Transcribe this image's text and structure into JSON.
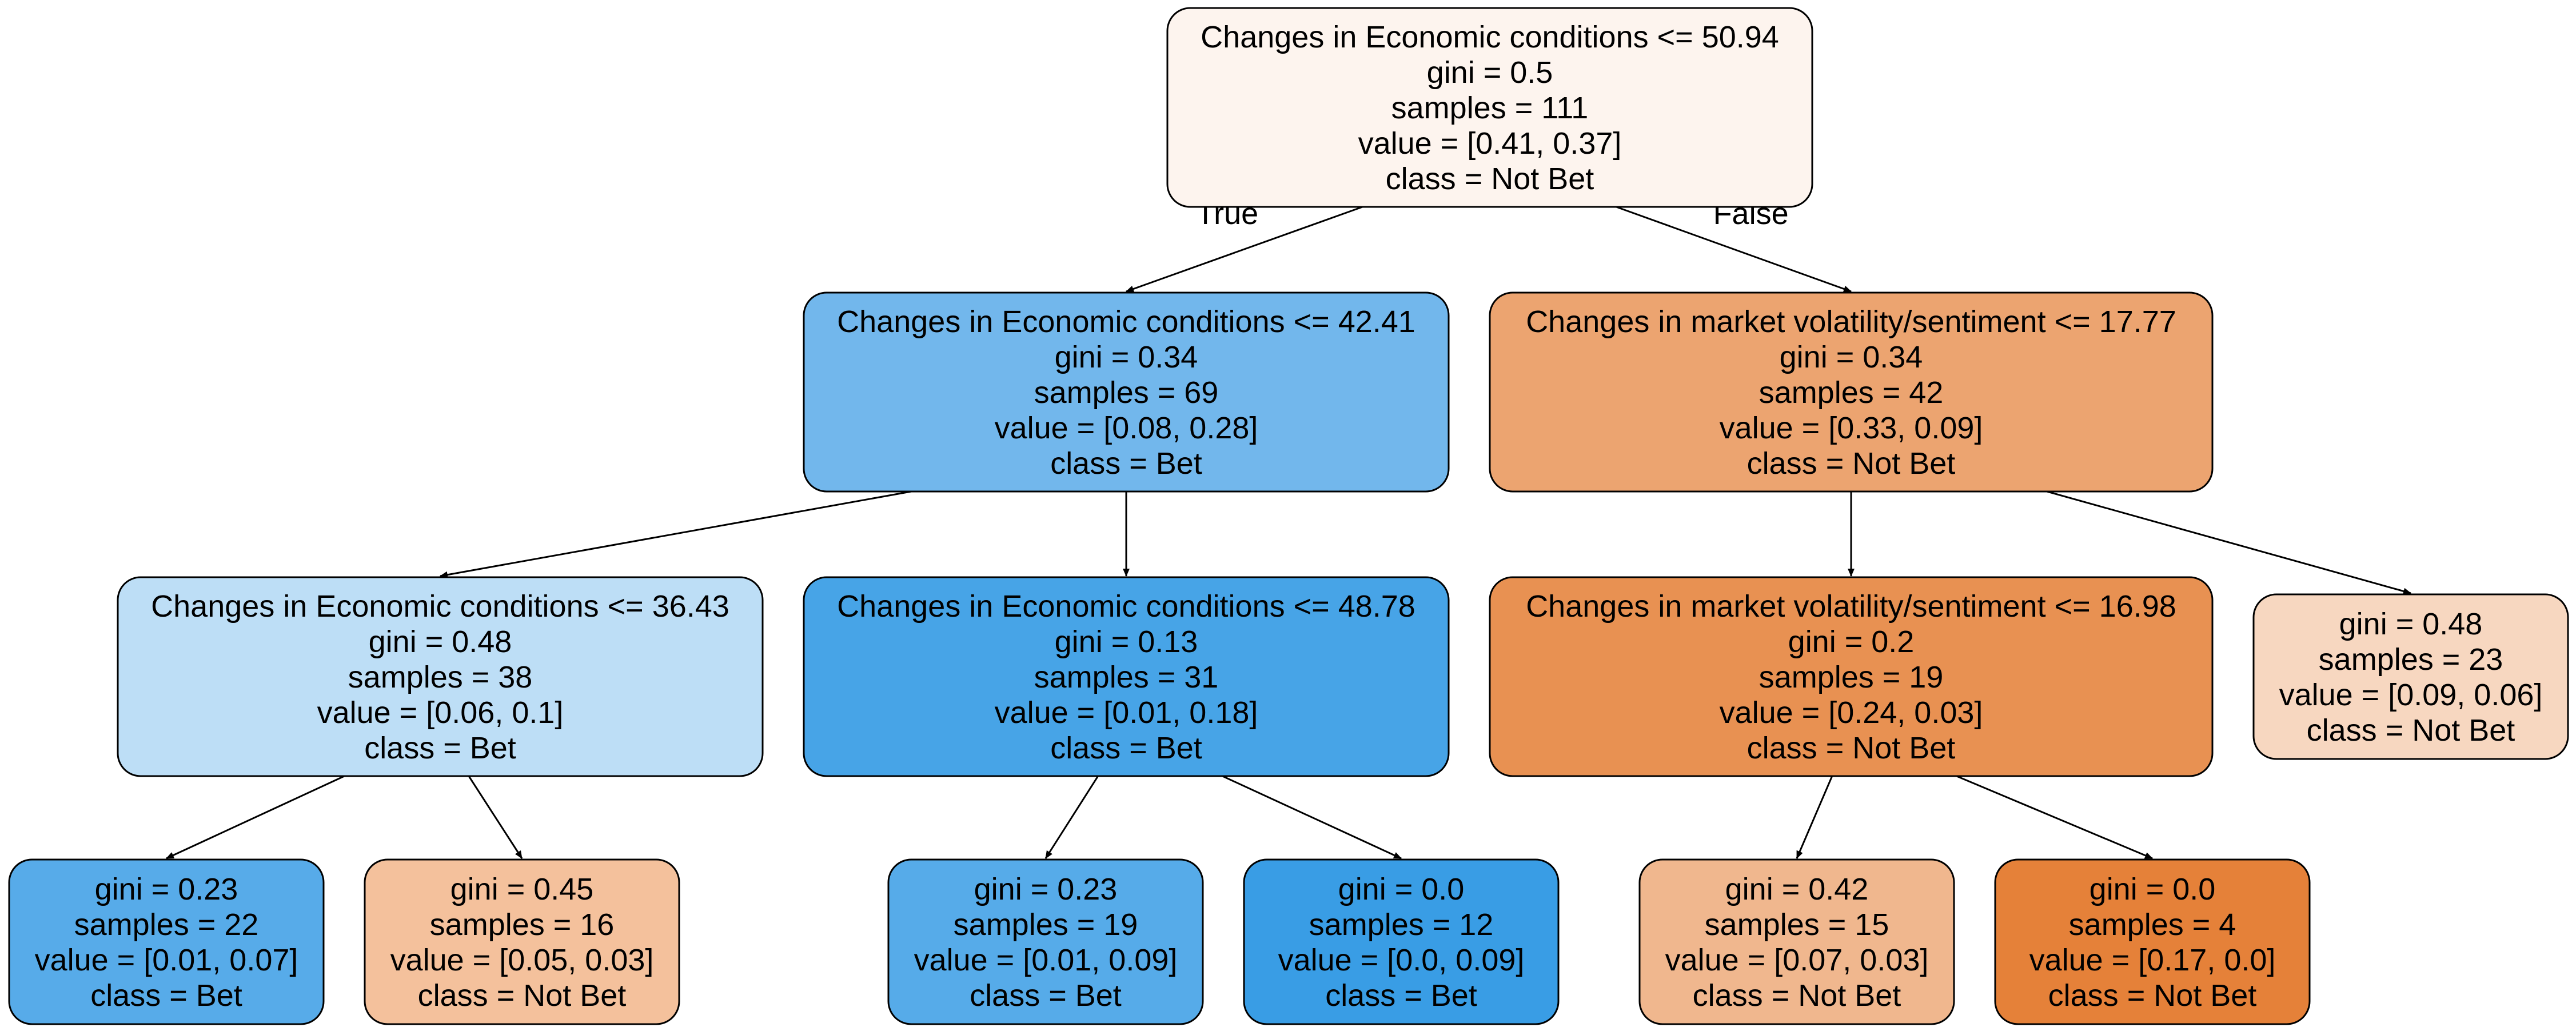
{
  "tree": {
    "nodes": [
      {
        "id": "n0",
        "lines": [
          "Changes in Economic conditions <= 50.94",
          "gini = 0.5",
          "samples = 111",
          "value = [0.41, 0.37]",
          "class = Not Bet"
        ],
        "fill": "#fdf4ee"
      },
      {
        "id": "n1",
        "lines": [
          "Changes in Economic conditions <= 42.41",
          "gini = 0.34",
          "samples = 69",
          "value = [0.08, 0.28]",
          "class = Bet"
        ],
        "fill": "#72b7ec"
      },
      {
        "id": "n2",
        "lines": [
          "Changes in market volatility/sentiment <= 17.77",
          "gini = 0.34",
          "samples = 42",
          "value = [0.33, 0.09]",
          "class = Not Bet"
        ],
        "fill": "#eca470"
      },
      {
        "id": "n3",
        "lines": [
          "Changes in Economic conditions <= 36.43",
          "gini = 0.48",
          "samples = 38",
          "value = [0.06, 0.1]",
          "class = Bet"
        ],
        "fill": "#bddef6"
      },
      {
        "id": "n4",
        "lines": [
          "Changes in Economic conditions <= 48.78",
          "gini = 0.13",
          "samples = 31",
          "value = [0.01, 0.18]",
          "class = Bet"
        ],
        "fill": "#47a4e7"
      },
      {
        "id": "n5",
        "lines": [
          "Changes in market volatility/sentiment <= 16.98",
          "gini = 0.2",
          "samples = 19",
          "value = [0.24, 0.03]",
          "class = Not Bet"
        ],
        "fill": "#e89152"
      },
      {
        "id": "n6",
        "lines": [
          "gini = 0.48",
          "samples = 23",
          "value = [0.09, 0.06]",
          "class = Not Bet"
        ],
        "fill": "#f7d7c0"
      },
      {
        "id": "n7",
        "lines": [
          "gini = 0.23",
          "samples = 22",
          "value = [0.01, 0.07]",
          "class = Bet"
        ],
        "fill": "#57abe9"
      },
      {
        "id": "n8",
        "lines": [
          "gini = 0.45",
          "samples = 16",
          "value = [0.05, 0.03]",
          "class = Not Bet"
        ],
        "fill": "#f4c19c"
      },
      {
        "id": "n9",
        "lines": [
          "gini = 0.23",
          "samples = 19",
          "value = [0.01, 0.09]",
          "class = Bet"
        ],
        "fill": "#56abe9"
      },
      {
        "id": "n10",
        "lines": [
          "gini = 0.0",
          "samples = 12",
          "value = [0.0, 0.09]",
          "class = Bet"
        ],
        "fill": "#399de5"
      },
      {
        "id": "n11",
        "lines": [
          "gini = 0.42",
          "samples = 15",
          "value = [0.07, 0.03]",
          "class = Not Bet"
        ],
        "fill": "#f0b78e"
      },
      {
        "id": "n12",
        "lines": [
          "gini = 0.0",
          "samples = 4",
          "value = [0.17, 0.0]",
          "class = Not Bet"
        ],
        "fill": "#e58139"
      }
    ],
    "edges": [
      {
        "from": "n0",
        "to": "n1",
        "label": "True"
      },
      {
        "from": "n0",
        "to": "n2",
        "label": "False"
      },
      {
        "from": "n1",
        "to": "n3",
        "label": ""
      },
      {
        "from": "n1",
        "to": "n4",
        "label": ""
      },
      {
        "from": "n2",
        "to": "n5",
        "label": ""
      },
      {
        "from": "n2",
        "to": "n6",
        "label": ""
      },
      {
        "from": "n3",
        "to": "n7",
        "label": ""
      },
      {
        "from": "n3",
        "to": "n8",
        "label": ""
      },
      {
        "from": "n4",
        "to": "n9",
        "label": ""
      },
      {
        "from": "n4",
        "to": "n10",
        "label": ""
      },
      {
        "from": "n5",
        "to": "n11",
        "label": ""
      },
      {
        "from": "n5",
        "to": "n12",
        "label": ""
      }
    ]
  }
}
